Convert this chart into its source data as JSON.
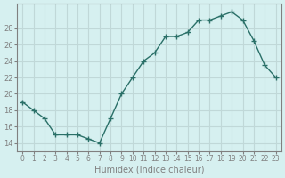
{
  "x": [
    0,
    1,
    2,
    3,
    4,
    5,
    6,
    7,
    8,
    9,
    10,
    11,
    12,
    13,
    14,
    15,
    16,
    17,
    18,
    19,
    20,
    21,
    22,
    23
  ],
  "y": [
    19.0,
    18.0,
    17.0,
    15.0,
    15.0,
    15.0,
    14.5,
    14.0,
    17.0,
    20.0,
    22.0,
    24.0,
    25.0,
    27.0,
    27.0,
    27.5,
    29.0,
    29.0,
    29.5,
    30.0,
    29.0,
    26.5,
    23.5,
    22.0
  ],
  "xlabel": "Humidex (Indice chaleur)",
  "yticks": [
    14,
    16,
    18,
    20,
    22,
    24,
    26,
    28
  ],
  "xticks": [
    0,
    1,
    2,
    3,
    4,
    5,
    6,
    7,
    8,
    9,
    10,
    11,
    12,
    13,
    14,
    15,
    16,
    17,
    18,
    19,
    20,
    21,
    22,
    23
  ],
  "xtick_labels": [
    "0",
    "1",
    "2",
    "3",
    "4",
    "5",
    "6",
    "7",
    "8",
    "9",
    "10",
    "11",
    "12",
    "13",
    "14",
    "15",
    "16",
    "17",
    "18",
    "19",
    "20",
    "21",
    "22",
    "23"
  ],
  "ylim": [
    13.0,
    31.0
  ],
  "xlim": [
    -0.5,
    23.5
  ],
  "line_color": "#2a7068",
  "marker": "+",
  "bg_color": "#d6f0f0",
  "grid_color": "#c0d8d8",
  "axis_color": "#808080"
}
